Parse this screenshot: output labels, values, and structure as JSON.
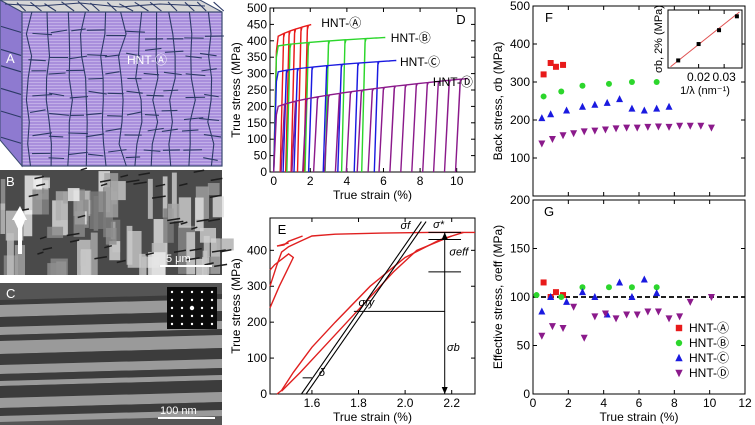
{
  "panels": {
    "A": {
      "letter": "A",
      "label": "HNT-Ⓐ"
    },
    "B": {
      "letter": "B",
      "scale": "5 μm"
    },
    "C": {
      "letter": "C",
      "scale": "100 nm"
    },
    "D": {
      "letter": "D"
    },
    "E": {
      "letter": "E"
    },
    "F": {
      "letter": "F"
    },
    "G": {
      "letter": "G"
    }
  },
  "chart_data": [
    {
      "id": "D",
      "type": "line",
      "title": "",
      "xlabel": "True strain (%)",
      "ylabel": "True stress (MPa)",
      "xlim": [
        -0.2,
        11
      ],
      "ylim": [
        0,
        500
      ],
      "xticks": [
        "0",
        "2",
        "4",
        "6",
        "8",
        "10"
      ],
      "yticks": [
        "0",
        "50",
        "100",
        "150",
        "200",
        "250",
        "300",
        "350",
        "400",
        "450",
        "500"
      ],
      "series": [
        {
          "name": "HNT-Ⓐ",
          "color": "#e81a1a",
          "yield": 400,
          "max": 450,
          "cycles": [
            0.55,
            0.85,
            1.15,
            1.5,
            1.85
          ],
          "end": 2.1,
          "label_at": [
            2.6,
            455
          ]
        },
        {
          "name": "HNT-Ⓑ",
          "color": "#2cd62c",
          "yield": 380,
          "max": 410,
          "cycles": [
            0.9,
            1.9,
            3.0,
            3.9,
            5.0
          ],
          "end": 6.1,
          "label_at": [
            6.4,
            408
          ]
        },
        {
          "name": "HNT-Ⓒ",
          "color": "#1a1ae0",
          "yield": 300,
          "max": 340,
          "cycles": [
            0.7,
            1.3,
            2.1,
            2.9,
            3.7,
            4.6,
            5.7
          ],
          "end": 6.7,
          "label_at": [
            6.9,
            335
          ]
        },
        {
          "name": "HNT-Ⓓ",
          "color": "#8b1a8b",
          "yield": 190,
          "max": 285,
          "cycles": [
            0.6,
            1.2,
            1.8,
            2.4,
            3.0,
            3.6,
            4.2,
            4.8,
            5.4,
            6.0,
            6.6,
            7.2,
            7.8,
            8.4,
            9.0,
            9.6,
            10.2
          ],
          "end": 10.6,
          "label_at": [
            8.7,
            275
          ]
        }
      ]
    },
    {
      "id": "E",
      "type": "line",
      "xlabel": "True strain (%)",
      "ylabel": "True stress (MPa)",
      "xlim": [
        1.42,
        2.3
      ],
      "ylim": [
        0,
        490
      ],
      "xticks": [
        "1.6",
        "1.8",
        "2.0",
        "2.2"
      ],
      "yticks": [
        "0",
        "100",
        "200",
        "300",
        "400"
      ],
      "annotations": [
        "σf",
        "σ*",
        "σeff",
        "σry",
        "σb",
        "δ"
      ],
      "values": {
        "sigma_max": 450,
        "sigma_f": 430,
        "sigma_ry": 230,
        "sigma_b_top": 340
      }
    },
    {
      "id": "F",
      "type": "scatter",
      "ylabel": "Back stress, σb (MPa)",
      "xlabel": "",
      "xlim": [
        0,
        12
      ],
      "ylim": [
        0,
        500
      ],
      "xticks": [
        "0",
        "2",
        "4",
        "6",
        "8",
        "10",
        "12"
      ],
      "yticks": [
        "100",
        "200",
        "300",
        "400",
        "500"
      ],
      "series": [
        {
          "name": "HNT-Ⓐ",
          "color": "#e81a1a",
          "marker": "square",
          "x": [
            0.6,
            1.0,
            1.3,
            1.7
          ],
          "y": [
            320,
            350,
            340,
            345
          ]
        },
        {
          "name": "HNT-Ⓑ",
          "color": "#2cd62c",
          "marker": "circle",
          "x": [
            0.6,
            1.6,
            2.8,
            4.3,
            5.6,
            7.0
          ],
          "y": [
            262,
            275,
            290,
            295,
            300,
            300
          ]
        },
        {
          "name": "HNT-Ⓒ",
          "color": "#1a1ae0",
          "marker": "triangle-up",
          "x": [
            0.5,
            1.0,
            1.9,
            2.8,
            3.5,
            4.2,
            4.9,
            5.6,
            6.3,
            7.0,
            7.7
          ],
          "y": [
            205,
            215,
            225,
            235,
            240,
            245,
            255,
            230,
            225,
            230,
            235
          ]
        },
        {
          "name": "HNT-Ⓓ",
          "color": "#8b1a8b",
          "marker": "triangle-down",
          "x": [
            0.5,
            1.1,
            1.7,
            2.3,
            2.9,
            3.5,
            4.1,
            4.7,
            5.3,
            5.9,
            6.5,
            7.1,
            7.7,
            8.3,
            8.9,
            9.5,
            10.1
          ],
          "y": [
            138,
            150,
            160,
            165,
            170,
            172,
            175,
            178,
            180,
            180,
            182,
            183,
            182,
            185,
            185,
            185,
            180
          ]
        }
      ],
      "inset": {
        "xlabel": "1/λ (nm⁻¹)",
        "ylabel": "σb, 2% (MPa)",
        "xlim": [
          0.008,
          0.037
        ],
        "ylim": [
          140,
          370
        ],
        "xticks": [
          "0.02",
          "0.03"
        ],
        "points": {
          "x": [
            0.012,
            0.02,
            0.028,
            0.035
          ],
          "y": [
            170,
            235,
            290,
            345
          ]
        },
        "fit_color": "#e05050"
      }
    },
    {
      "id": "G",
      "type": "scatter",
      "ylabel": "Effective stress, σeff (MPa)",
      "xlabel": "True strain (%)",
      "xlim": [
        0,
        12
      ],
      "ylim": [
        0,
        200
      ],
      "xticks": [
        "0",
        "2",
        "4",
        "6",
        "8",
        "10",
        "12"
      ],
      "yticks": [
        "0",
        "50",
        "100",
        "150",
        "200"
      ],
      "reference_line": 100,
      "legend_position": "bottom-right",
      "series": [
        {
          "name": "HNT-Ⓐ",
          "color": "#e81a1a",
          "marker": "square",
          "x": [
            0.6,
            1.0,
            1.3,
            1.7
          ],
          "y": [
            115,
            100,
            105,
            102
          ]
        },
        {
          "name": "HNT-Ⓑ",
          "color": "#2cd62c",
          "marker": "circle",
          "x": [
            0.2,
            1.6,
            2.8,
            4.3,
            5.6,
            7.0
          ],
          "y": [
            102,
            100,
            110,
            110,
            110,
            110
          ]
        },
        {
          "name": "HNT-Ⓒ",
          "color": "#1a1ae0",
          "marker": "triangle-up",
          "x": [
            0.5,
            1.0,
            1.9,
            2.8,
            3.5,
            4.2,
            4.9,
            5.6,
            6.3,
            7.0
          ],
          "y": [
            85,
            100,
            95,
            105,
            100,
            82,
            115,
            100,
            118,
            104
          ]
        },
        {
          "name": "HNT-Ⓓ",
          "color": "#8b1a8b",
          "marker": "triangle-down",
          "x": [
            0.5,
            1.1,
            1.7,
            2.3,
            2.9,
            3.5,
            4.1,
            4.7,
            5.3,
            5.9,
            6.5,
            7.1,
            7.7,
            8.3,
            8.9,
            10.1
          ],
          "y": [
            60,
            70,
            68,
            90,
            58,
            80,
            83,
            78,
            82,
            82,
            85,
            85,
            78,
            80,
            95,
            100
          ]
        }
      ]
    }
  ]
}
